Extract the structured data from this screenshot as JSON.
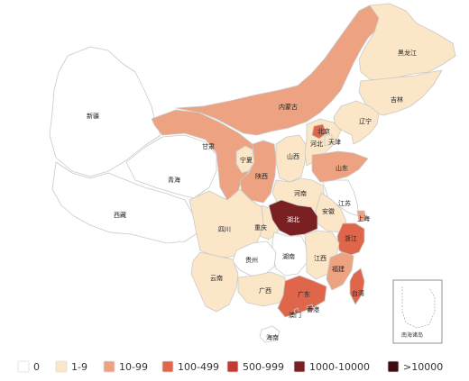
{
  "colors": {
    "c0": "#ffffff",
    "c1": "#fbe6c8",
    "c2": "#eda281",
    "c3": "#e0664b",
    "c4": "#c43a32",
    "c5": "#7a1f22",
    "c6": "#3f0a12"
  },
  "provinces": [
    {
      "name": "新疆",
      "level": "c0"
    },
    {
      "name": "西藏",
      "level": "c0"
    },
    {
      "name": "青海",
      "level": "c0"
    },
    {
      "name": "甘肃",
      "level": "c2"
    },
    {
      "name": "内蒙古",
      "level": "c2"
    },
    {
      "name": "黑龙江",
      "level": "c1"
    },
    {
      "name": "吉林",
      "level": "c1"
    },
    {
      "name": "辽宁",
      "level": "c1"
    },
    {
      "name": "宁夏",
      "level": "c1"
    },
    {
      "name": "陕西",
      "level": "c2"
    },
    {
      "name": "山西",
      "level": "c1"
    },
    {
      "name": "河北",
      "level": "c1"
    },
    {
      "name": "北京",
      "level": "c3"
    },
    {
      "name": "天津",
      "level": "c1"
    },
    {
      "name": "山东",
      "level": "c2"
    },
    {
      "name": "河南",
      "level": "c1"
    },
    {
      "name": "江苏",
      "level": "c0"
    },
    {
      "name": "安徽",
      "level": "c1"
    },
    {
      "name": "上海",
      "level": "c2"
    },
    {
      "name": "四川",
      "level": "c1"
    },
    {
      "name": "重庆",
      "level": "c1"
    },
    {
      "name": "湖北",
      "level": "c5"
    },
    {
      "name": "浙江",
      "level": "c3"
    },
    {
      "name": "湖南",
      "level": "c0"
    },
    {
      "name": "江西",
      "level": "c1"
    },
    {
      "name": "福建",
      "level": "c2"
    },
    {
      "name": "贵州",
      "level": "c0"
    },
    {
      "name": "云南",
      "level": "c1"
    },
    {
      "name": "广西",
      "level": "c1"
    },
    {
      "name": "广东",
      "level": "c3"
    },
    {
      "name": "香港",
      "level": "c3"
    },
    {
      "name": "澳门",
      "level": "c3"
    },
    {
      "name": "台湾",
      "level": "c3"
    },
    {
      "name": "海南",
      "level": "c0"
    }
  ],
  "legend": [
    {
      "label": "0",
      "level": "c0"
    },
    {
      "label": "1-9",
      "level": "c1"
    },
    {
      "label": "10-99",
      "level": "c2"
    },
    {
      "label": "100-499",
      "level": "c3"
    },
    {
      "label": "500-999",
      "level": "c4"
    },
    {
      "label": "1000-10000",
      "level": "c5"
    },
    {
      "label": ">10000",
      "level": "c6"
    }
  ],
  "inset_label": "南海诸岛"
}
